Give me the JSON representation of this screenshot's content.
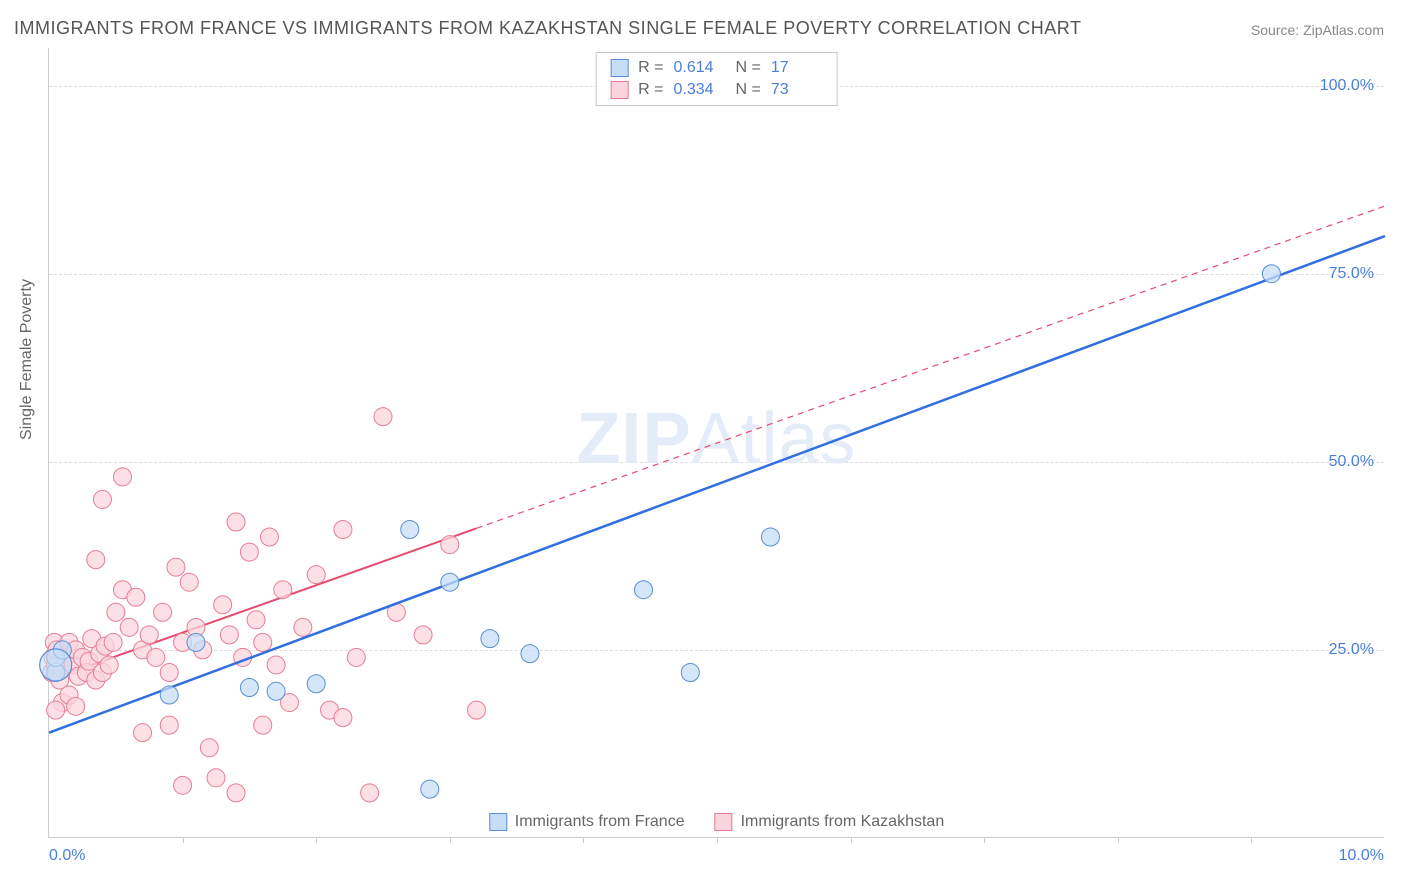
{
  "title": "IMMIGRANTS FROM FRANCE VS IMMIGRANTS FROM KAZAKHSTAN SINGLE FEMALE POVERTY CORRELATION CHART",
  "source": "Source: ZipAtlas.com",
  "ylabel": "Single Female Poverty",
  "watermark_bold": "ZIP",
  "watermark_rest": "Atlas",
  "chart": {
    "type": "scatter",
    "xlim": [
      0,
      10
    ],
    "ylim": [
      0,
      105
    ],
    "x_tick_left": "0.0%",
    "x_tick_right": "10.0%",
    "x_tick_marks": [
      1,
      2,
      3,
      4,
      5,
      6,
      7,
      8,
      9
    ],
    "y_ticks": [
      {
        "v": 25,
        "label": "25.0%"
      },
      {
        "v": 50,
        "label": "50.0%"
      },
      {
        "v": 75,
        "label": "75.0%"
      },
      {
        "v": 100,
        "label": "100.0%"
      }
    ],
    "grid_color": "#dddddd",
    "background_color": "#ffffff",
    "series": [
      {
        "name": "Immigrants from France",
        "fill": "#c7ddf6",
        "stroke": "#5b8fd6",
        "line_color": "#2f6fe0",
        "line_width": 2.5,
        "line_dash": "none",
        "marker_r": 9,
        "r_label": "R =",
        "r_value": "0.614",
        "n_label": "N =",
        "n_value": "17",
        "trend": {
          "x1": 0,
          "y1": 14,
          "x2": 10,
          "y2": 80
        },
        "points": [
          [
            0.05,
            22
          ],
          [
            0.05,
            24
          ],
          [
            0.1,
            25
          ],
          [
            0.9,
            19
          ],
          [
            1.1,
            26
          ],
          [
            1.5,
            20
          ],
          [
            1.7,
            19.5
          ],
          [
            2.0,
            20.5
          ],
          [
            2.7,
            41
          ],
          [
            3.0,
            34
          ],
          [
            3.3,
            26.5
          ],
          [
            3.6,
            24.5
          ],
          [
            2.85,
            6.5
          ],
          [
            4.45,
            33
          ],
          [
            4.8,
            22
          ],
          [
            5.4,
            40
          ],
          [
            9.15,
            75
          ]
        ]
      },
      {
        "name": "Immigrants from Kazakhstan",
        "fill": "#fbd5de",
        "stroke": "#e67d96",
        "line_color": "#e84a6f",
        "line_width": 2,
        "line_dash": "6,5",
        "marker_r": 9,
        "r_label": "R =",
        "r_value": "0.334",
        "n_label": "N =",
        "n_value": "73",
        "trend": {
          "x1": 0,
          "y1": 21,
          "x2": 10,
          "y2": 84
        },
        "trend_solid_until_x": 3.2,
        "points": [
          [
            0.02,
            22
          ],
          [
            0.03,
            24
          ],
          [
            0.04,
            26
          ],
          [
            0.05,
            23
          ],
          [
            0.06,
            25
          ],
          [
            0.08,
            21
          ],
          [
            0.1,
            22.5
          ],
          [
            0.12,
            24
          ],
          [
            0.15,
            26
          ],
          [
            0.18,
            23
          ],
          [
            0.2,
            25
          ],
          [
            0.22,
            21.5
          ],
          [
            0.25,
            24
          ],
          [
            0.28,
            22
          ],
          [
            0.3,
            23.5
          ],
          [
            0.32,
            26.5
          ],
          [
            0.35,
            21
          ],
          [
            0.38,
            24.5
          ],
          [
            0.4,
            22
          ],
          [
            0.42,
            25.5
          ],
          [
            0.45,
            23
          ],
          [
            0.48,
            26
          ],
          [
            0.1,
            18
          ],
          [
            0.15,
            19
          ],
          [
            0.2,
            17.5
          ],
          [
            0.05,
            17
          ],
          [
            0.4,
            45
          ],
          [
            0.55,
            48
          ],
          [
            0.35,
            37
          ],
          [
            0.5,
            30
          ],
          [
            0.55,
            33
          ],
          [
            0.6,
            28
          ],
          [
            0.65,
            32
          ],
          [
            0.7,
            25
          ],
          [
            0.75,
            27
          ],
          [
            0.8,
            24
          ],
          [
            0.85,
            30
          ],
          [
            0.9,
            22
          ],
          [
            0.95,
            36
          ],
          [
            1.0,
            26
          ],
          [
            1.05,
            34
          ],
          [
            1.1,
            28
          ],
          [
            1.15,
            25
          ],
          [
            1.2,
            12
          ],
          [
            1.25,
            8
          ],
          [
            1.3,
            31
          ],
          [
            1.35,
            27
          ],
          [
            1.4,
            42
          ],
          [
            1.45,
            24
          ],
          [
            1.5,
            38
          ],
          [
            1.55,
            29
          ],
          [
            1.6,
            26
          ],
          [
            1.65,
            40
          ],
          [
            1.7,
            23
          ],
          [
            1.75,
            33
          ],
          [
            1.8,
            18
          ],
          [
            1.9,
            28
          ],
          [
            2.0,
            35
          ],
          [
            2.1,
            17
          ],
          [
            2.2,
            41
          ],
          [
            2.3,
            24
          ],
          [
            2.5,
            56
          ],
          [
            2.6,
            30
          ],
          [
            2.8,
            27
          ],
          [
            3.0,
            39
          ],
          [
            3.2,
            17
          ],
          [
            1.0,
            7
          ],
          [
            1.4,
            6
          ],
          [
            2.4,
            6
          ],
          [
            0.7,
            14
          ],
          [
            0.9,
            15
          ],
          [
            1.6,
            15
          ],
          [
            2.2,
            16
          ]
        ]
      }
    ]
  }
}
